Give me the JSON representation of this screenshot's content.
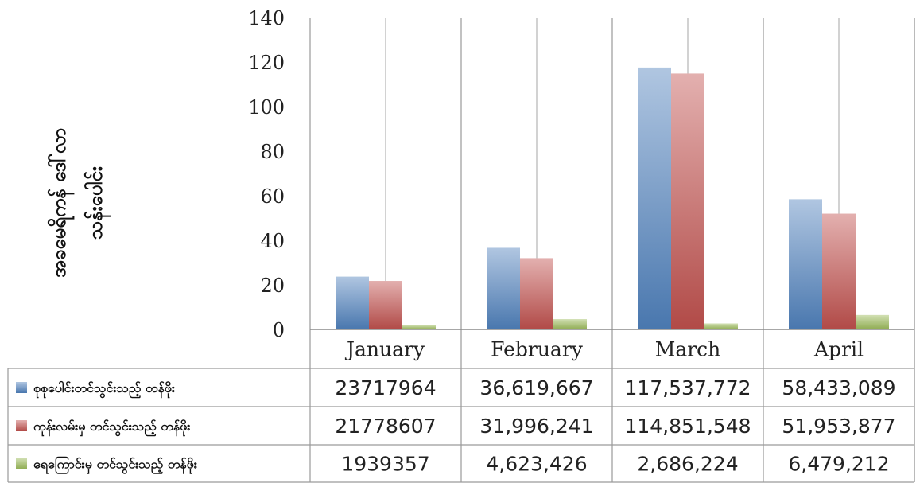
{
  "chart_data": {
    "type": "bar",
    "title": "",
    "ylabel": [
      "အခမေရိကန် ဒေါ်လာ",
      "သန်းပေါင်း"
    ],
    "ylim": [
      0,
      140
    ],
    "yticks": [
      0,
      20,
      40,
      60,
      80,
      100,
      120,
      140
    ],
    "categories": [
      "January",
      "February",
      "March",
      "April"
    ],
    "grid": "vertical category separators",
    "legend": "data table rows",
    "series": [
      {
        "name": "စုစုပေါင်းတင်သွင်းသည့် တန်ဖိုး",
        "color": "#4f81bd",
        "values": [
          23.717964,
          36.619667,
          117.537772,
          58.433089
        ],
        "table_values": [
          "23717964",
          "36,619,667",
          "117,537,772",
          "58,433,089"
        ]
      },
      {
        "name": "ကုန်းလမ်းမှ တင်သွင်းသည့် တန်ဖိုး",
        "color": "#c0504d",
        "values": [
          21.778607,
          31.996241,
          114.851548,
          51.953877
        ],
        "table_values": [
          "21778607",
          "31,996,241",
          "114,851,548",
          "51,953,877"
        ]
      },
      {
        "name": "ရေကြောင်းမှ တင်သွင်းသည့် တန်ဖိုး",
        "color": "#9bbb59",
        "values": [
          1.939357,
          4.623426,
          2.686224,
          6.479212
        ],
        "table_values": [
          "1939357",
          "4,623,426",
          "2,686,224",
          "6,479,212"
        ]
      }
    ]
  }
}
